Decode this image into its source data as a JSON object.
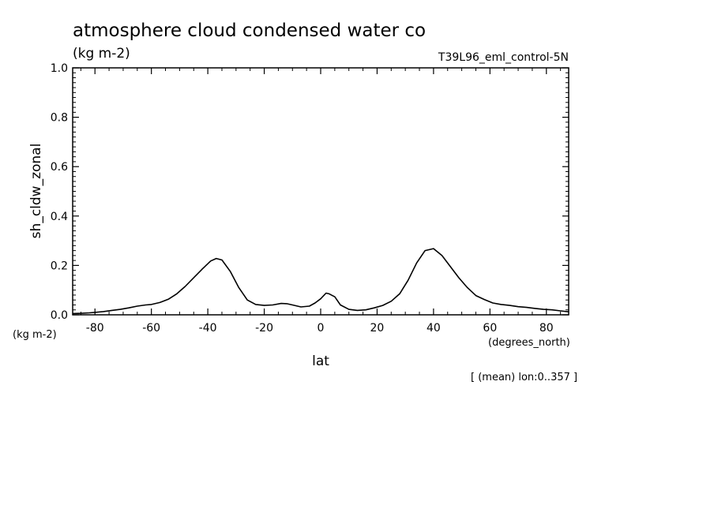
{
  "chart_data": {
    "type": "line",
    "title": "atmosphere cloud condensed water co",
    "subtitle": "(kg m-2)",
    "run_label": "T39L96_eml_control-5N",
    "ylabel": "sh_cldw_zonal",
    "ylabel_units": "(kg m-2)",
    "xlabel": "lat",
    "xlabel_units": "(degrees_north)",
    "footnote": "[ (mean) lon:0..357 ]",
    "xlim": [
      -87.9,
      87.9
    ],
    "ylim": [
      0.0,
      1.0
    ],
    "xticks": [
      -80,
      -60,
      -40,
      -20,
      0,
      20,
      40,
      60,
      80
    ],
    "xtick_labels": [
      "-80",
      "-60",
      "-40",
      "-20",
      "0",
      "20",
      "40",
      "60",
      "80"
    ],
    "yticks": [
      0.0,
      0.2,
      0.4,
      0.6,
      0.8,
      1.0
    ],
    "ytick_labels": [
      "0.0",
      "0.2",
      "0.4",
      "0.6",
      "0.8",
      "1.0"
    ],
    "grid": false,
    "series": [
      {
        "x": [
          -87.9,
          -85,
          -82,
          -80,
          -77,
          -74,
          -71,
          -68,
          -65,
          -62,
          -60,
          -57,
          -54,
          -51,
          -48,
          -45,
          -42,
          -39,
          -37,
          -35,
          -32,
          -29,
          -26,
          -23,
          -20,
          -17,
          -14,
          -12,
          -10,
          -7,
          -4,
          -2,
          0,
          1.9,
          3,
          5,
          7,
          10,
          13,
          16,
          19,
          22,
          25,
          28,
          31,
          34,
          37,
          40,
          43,
          46,
          49,
          52,
          55,
          58,
          61,
          64,
          67,
          70,
          73,
          76,
          79,
          82,
          85,
          87.9
        ],
        "y": [
          0.005,
          0.006,
          0.008,
          0.01,
          0.013,
          0.018,
          0.022,
          0.028,
          0.035,
          0.04,
          0.042,
          0.05,
          0.063,
          0.085,
          0.115,
          0.15,
          0.185,
          0.218,
          0.228,
          0.222,
          0.175,
          0.11,
          0.06,
          0.042,
          0.038,
          0.04,
          0.046,
          0.045,
          0.04,
          0.032,
          0.035,
          0.048,
          0.065,
          0.088,
          0.085,
          0.073,
          0.04,
          0.022,
          0.018,
          0.02,
          0.028,
          0.038,
          0.055,
          0.085,
          0.14,
          0.21,
          0.26,
          0.268,
          0.24,
          0.195,
          0.15,
          0.11,
          0.078,
          0.062,
          0.048,
          0.042,
          0.038,
          0.033,
          0.03,
          0.026,
          0.022,
          0.02,
          0.016,
          0.012
        ]
      }
    ]
  }
}
